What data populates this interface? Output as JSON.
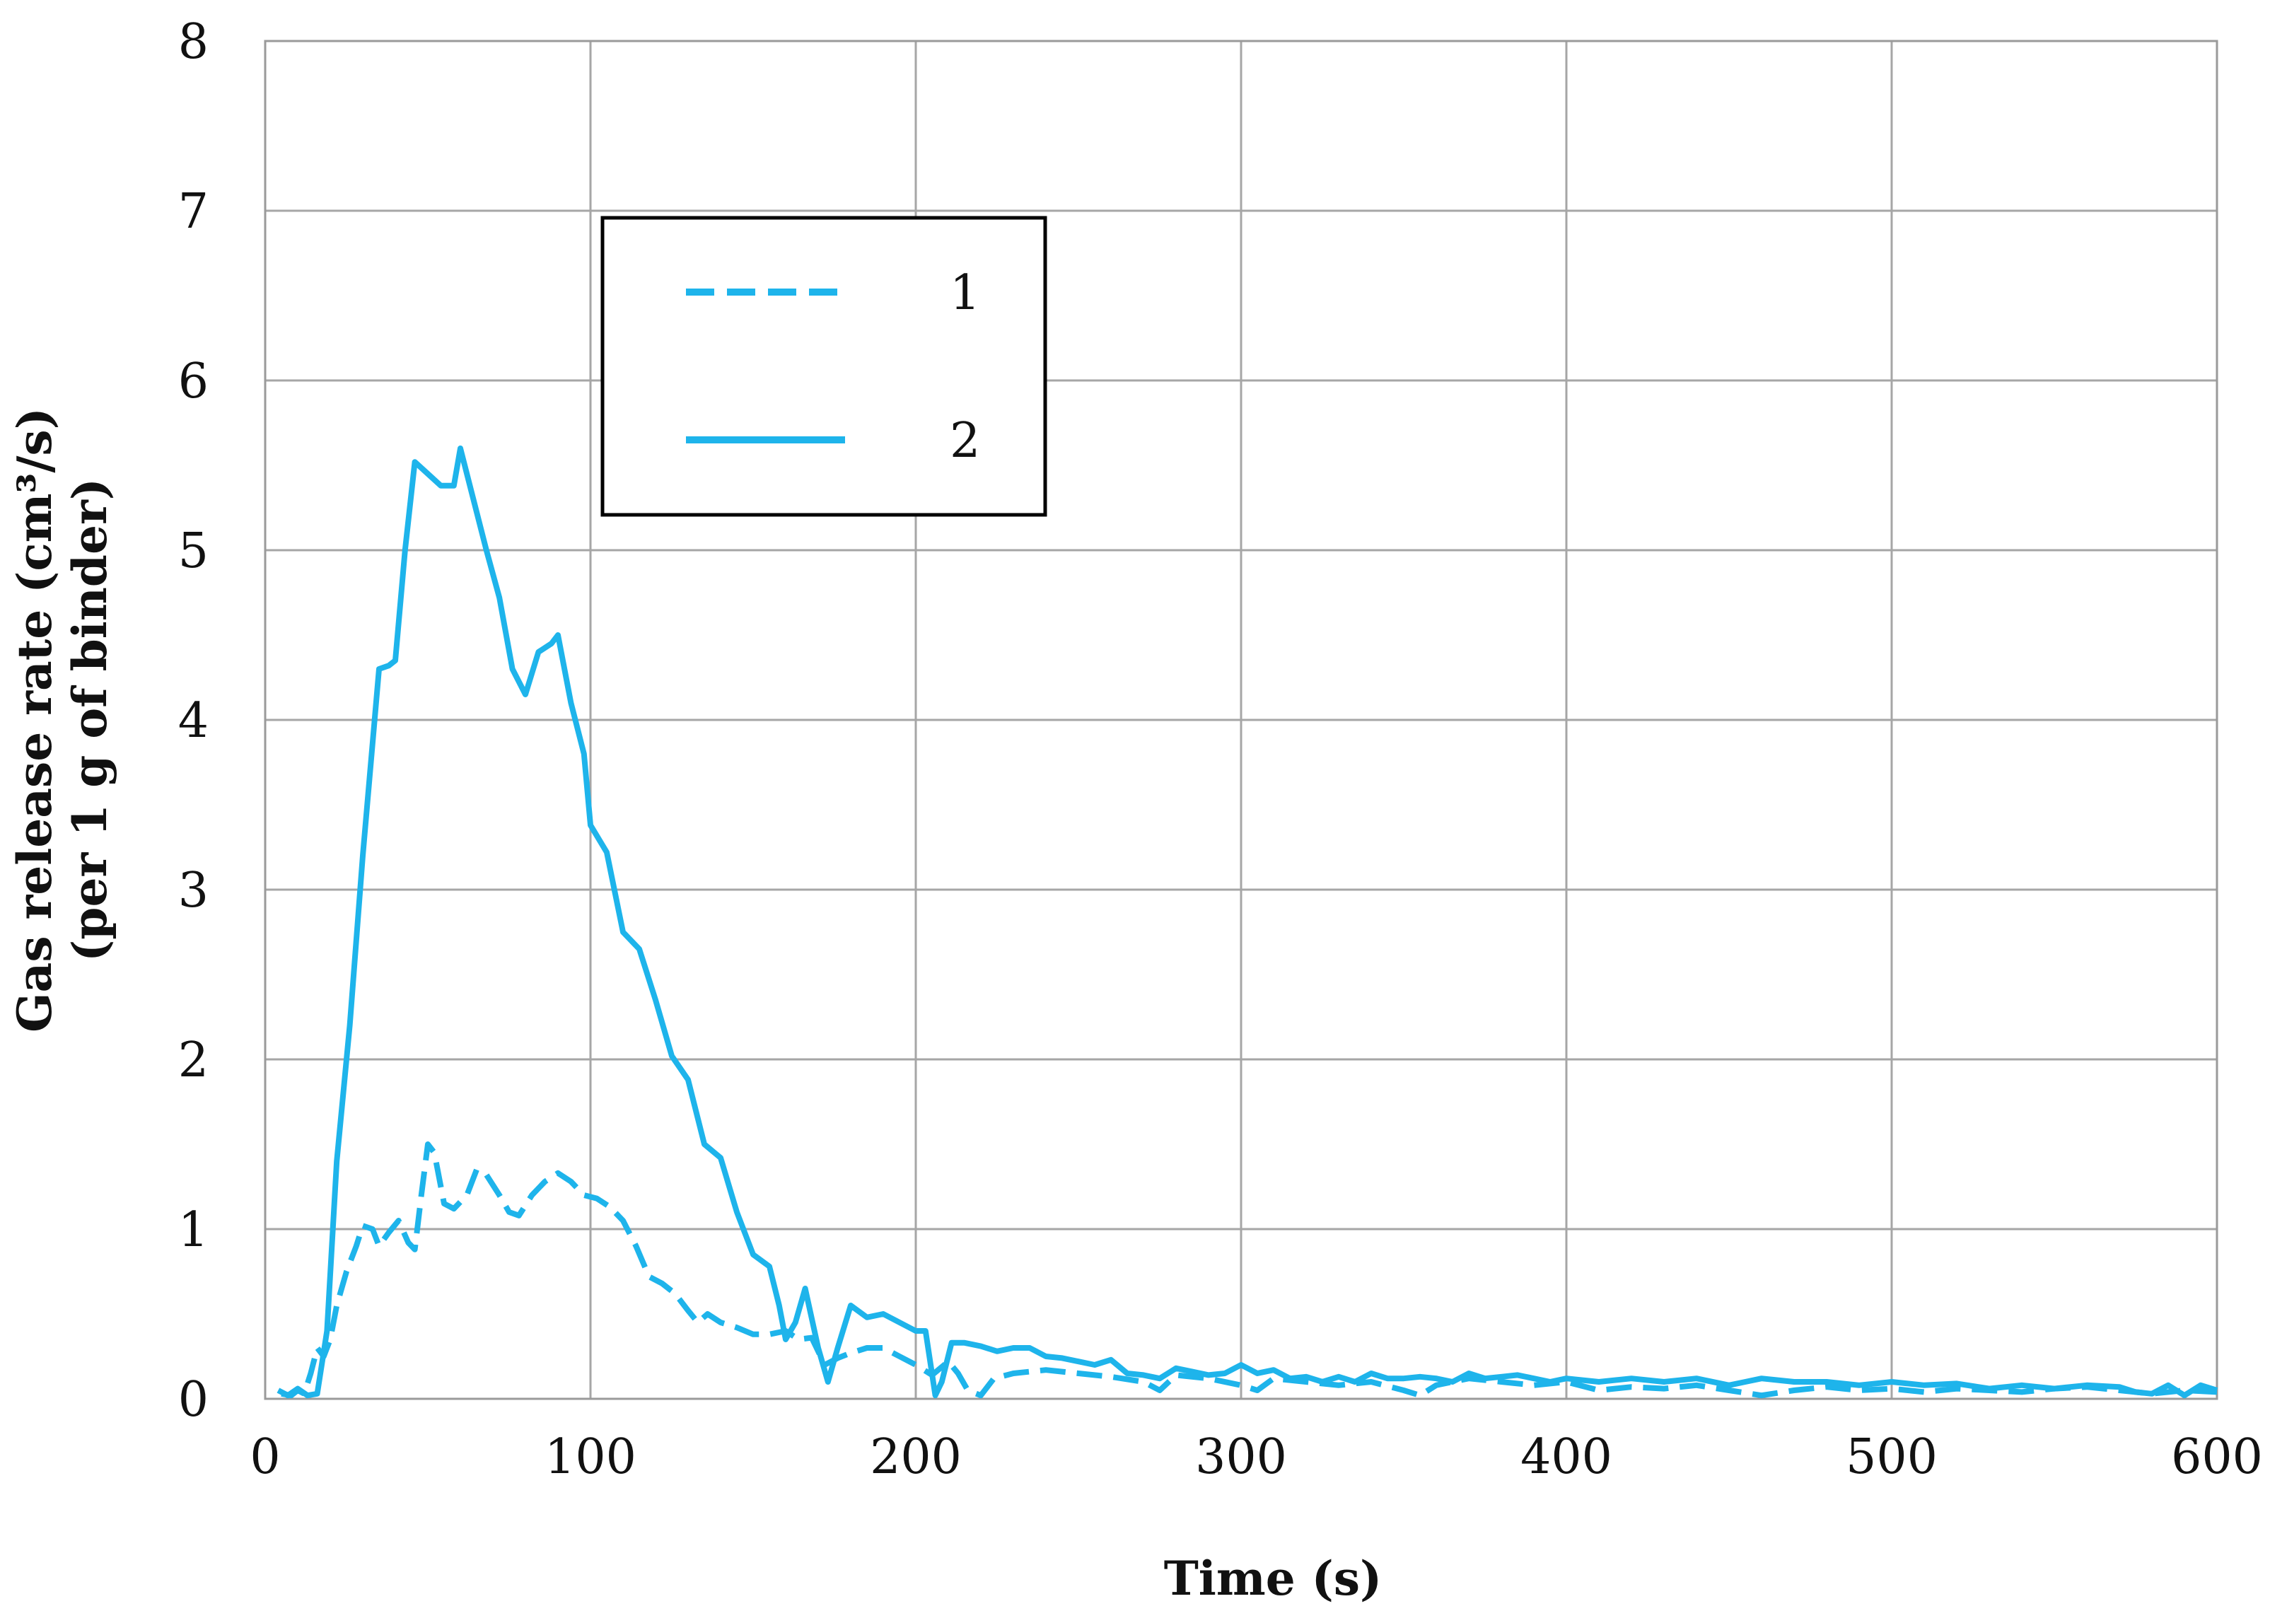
{
  "chart_data": {
    "type": "line",
    "xlabel": "Time (s)",
    "ylabel_line1": "Gas release rate (cm³/s)",
    "ylabel_line2": "(per 1 g of binder)",
    "xlim": [
      0,
      600
    ],
    "ylim": [
      0,
      8
    ],
    "xticks": [
      0,
      100,
      200,
      300,
      400,
      500,
      600
    ],
    "yticks": [
      0,
      1,
      2,
      3,
      4,
      5,
      6,
      7,
      8
    ],
    "grid": true,
    "legend_position": "upper-left-center",
    "line_color": "#1eb4eb",
    "series": [
      {
        "name": "1",
        "style": "dashed",
        "points": [
          [
            5,
            0.03
          ],
          [
            8,
            0.02
          ],
          [
            10,
            0.05
          ],
          [
            12,
            0.03
          ],
          [
            14,
            0.15
          ],
          [
            16,
            0.3
          ],
          [
            18,
            0.25
          ],
          [
            20,
            0.35
          ],
          [
            22,
            0.55
          ],
          [
            25,
            0.75
          ],
          [
            28,
            0.9
          ],
          [
            30,
            1.02
          ],
          [
            33,
            1.0
          ],
          [
            35,
            0.9
          ],
          [
            38,
            0.98
          ],
          [
            41,
            1.05
          ],
          [
            44,
            0.92
          ],
          [
            46,
            0.88
          ],
          [
            48,
            1.2
          ],
          [
            50,
            1.5
          ],
          [
            52,
            1.45
          ],
          [
            55,
            1.15
          ],
          [
            58,
            1.12
          ],
          [
            62,
            1.2
          ],
          [
            65,
            1.35
          ],
          [
            68,
            1.32
          ],
          [
            72,
            1.2
          ],
          [
            75,
            1.1
          ],
          [
            78,
            1.08
          ],
          [
            82,
            1.2
          ],
          [
            86,
            1.28
          ],
          [
            90,
            1.33
          ],
          [
            94,
            1.28
          ],
          [
            98,
            1.2
          ],
          [
            102,
            1.18
          ],
          [
            106,
            1.13
          ],
          [
            110,
            1.05
          ],
          [
            114,
            0.9
          ],
          [
            118,
            0.72
          ],
          [
            122,
            0.68
          ],
          [
            126,
            0.62
          ],
          [
            130,
            0.52
          ],
          [
            133,
            0.45
          ],
          [
            136,
            0.5
          ],
          [
            140,
            0.45
          ],
          [
            145,
            0.42
          ],
          [
            150,
            0.38
          ],
          [
            155,
            0.38
          ],
          [
            160,
            0.4
          ],
          [
            164,
            0.35
          ],
          [
            168,
            0.36
          ],
          [
            172,
            0.2
          ],
          [
            176,
            0.24
          ],
          [
            180,
            0.27
          ],
          [
            185,
            0.3
          ],
          [
            190,
            0.3
          ],
          [
            195,
            0.25
          ],
          [
            200,
            0.2
          ],
          [
            205,
            0.14
          ],
          [
            210,
            0.22
          ],
          [
            213,
            0.15
          ],
          [
            216,
            0.05
          ],
          [
            220,
            0.02
          ],
          [
            224,
            0.12
          ],
          [
            230,
            0.15
          ],
          [
            240,
            0.17
          ],
          [
            250,
            0.15
          ],
          [
            260,
            0.13
          ],
          [
            270,
            0.1
          ],
          [
            275,
            0.05
          ],
          [
            280,
            0.14
          ],
          [
            290,
            0.12
          ],
          [
            300,
            0.08
          ],
          [
            305,
            0.05
          ],
          [
            310,
            0.12
          ],
          [
            320,
            0.1
          ],
          [
            330,
            0.08
          ],
          [
            340,
            0.1
          ],
          [
            350,
            0.05
          ],
          [
            355,
            0.02
          ],
          [
            360,
            0.08
          ],
          [
            370,
            0.12
          ],
          [
            380,
            0.1
          ],
          [
            390,
            0.08
          ],
          [
            400,
            0.1
          ],
          [
            410,
            0.05
          ],
          [
            420,
            0.07
          ],
          [
            430,
            0.06
          ],
          [
            440,
            0.08
          ],
          [
            450,
            0.05
          ],
          [
            460,
            0.02
          ],
          [
            470,
            0.05
          ],
          [
            480,
            0.07
          ],
          [
            490,
            0.05
          ],
          [
            500,
            0.06
          ],
          [
            510,
            0.04
          ],
          [
            520,
            0.06
          ],
          [
            530,
            0.05
          ],
          [
            540,
            0.04
          ],
          [
            550,
            0.06
          ],
          [
            560,
            0.07
          ],
          [
            570,
            0.05
          ],
          [
            580,
            0.03
          ],
          [
            590,
            0.05
          ],
          [
            600,
            0.04
          ]
        ]
      },
      {
        "name": "2",
        "style": "solid",
        "points": [
          [
            4,
            0.05
          ],
          [
            7,
            0.02
          ],
          [
            10,
            0.06
          ],
          [
            13,
            0.02
          ],
          [
            16,
            0.03
          ],
          [
            19,
            0.4
          ],
          [
            22,
            1.4
          ],
          [
            26,
            2.2
          ],
          [
            30,
            3.2
          ],
          [
            35,
            4.3
          ],
          [
            38,
            4.32
          ],
          [
            40,
            4.35
          ],
          [
            43,
            5.0
          ],
          [
            46,
            5.52
          ],
          [
            50,
            5.45
          ],
          [
            54,
            5.38
          ],
          [
            58,
            5.38
          ],
          [
            60,
            5.6
          ],
          [
            64,
            5.3
          ],
          [
            68,
            5.0
          ],
          [
            72,
            4.72
          ],
          [
            76,
            4.3
          ],
          [
            80,
            4.15
          ],
          [
            84,
            4.4
          ],
          [
            88,
            4.45
          ],
          [
            90,
            4.5
          ],
          [
            94,
            4.1
          ],
          [
            98,
            3.8
          ],
          [
            100,
            3.38
          ],
          [
            105,
            3.22
          ],
          [
            110,
            2.75
          ],
          [
            115,
            2.65
          ],
          [
            120,
            2.35
          ],
          [
            125,
            2.02
          ],
          [
            130,
            1.88
          ],
          [
            135,
            1.5
          ],
          [
            140,
            1.42
          ],
          [
            145,
            1.1
          ],
          [
            150,
            0.85
          ],
          [
            155,
            0.78
          ],
          [
            158,
            0.55
          ],
          [
            160,
            0.35
          ],
          [
            163,
            0.45
          ],
          [
            166,
            0.65
          ],
          [
            170,
            0.3
          ],
          [
            173,
            0.1
          ],
          [
            176,
            0.3
          ],
          [
            180,
            0.55
          ],
          [
            185,
            0.48
          ],
          [
            190,
            0.5
          ],
          [
            195,
            0.45
          ],
          [
            200,
            0.4
          ],
          [
            203,
            0.4
          ],
          [
            206,
            0.02
          ],
          [
            208,
            0.1
          ],
          [
            211,
            0.33
          ],
          [
            215,
            0.33
          ],
          [
            220,
            0.31
          ],
          [
            225,
            0.28
          ],
          [
            230,
            0.3
          ],
          [
            235,
            0.3
          ],
          [
            240,
            0.25
          ],
          [
            245,
            0.24
          ],
          [
            250,
            0.22
          ],
          [
            255,
            0.2
          ],
          [
            260,
            0.23
          ],
          [
            265,
            0.15
          ],
          [
            270,
            0.14
          ],
          [
            275,
            0.12
          ],
          [
            280,
            0.18
          ],
          [
            285,
            0.16
          ],
          [
            290,
            0.14
          ],
          [
            295,
            0.15
          ],
          [
            300,
            0.2
          ],
          [
            305,
            0.15
          ],
          [
            310,
            0.17
          ],
          [
            315,
            0.12
          ],
          [
            320,
            0.13
          ],
          [
            325,
            0.1
          ],
          [
            330,
            0.13
          ],
          [
            335,
            0.1
          ],
          [
            340,
            0.15
          ],
          [
            345,
            0.12
          ],
          [
            350,
            0.12
          ],
          [
            355,
            0.13
          ],
          [
            360,
            0.12
          ],
          [
            365,
            0.1
          ],
          [
            370,
            0.15
          ],
          [
            375,
            0.12
          ],
          [
            380,
            0.13
          ],
          [
            385,
            0.14
          ],
          [
            390,
            0.12
          ],
          [
            395,
            0.1
          ],
          [
            400,
            0.12
          ],
          [
            410,
            0.1
          ],
          [
            420,
            0.12
          ],
          [
            430,
            0.1
          ],
          [
            440,
            0.12
          ],
          [
            450,
            0.08
          ],
          [
            455,
            0.1
          ],
          [
            460,
            0.12
          ],
          [
            470,
            0.1
          ],
          [
            480,
            0.1
          ],
          [
            490,
            0.08
          ],
          [
            500,
            0.1
          ],
          [
            510,
            0.08
          ],
          [
            520,
            0.09
          ],
          [
            530,
            0.06
          ],
          [
            540,
            0.08
          ],
          [
            550,
            0.06
          ],
          [
            560,
            0.08
          ],
          [
            570,
            0.07
          ],
          [
            575,
            0.04
          ],
          [
            580,
            0.03
          ],
          [
            585,
            0.08
          ],
          [
            590,
            0.02
          ],
          [
            595,
            0.08
          ],
          [
            600,
            0.05
          ]
        ]
      }
    ]
  }
}
